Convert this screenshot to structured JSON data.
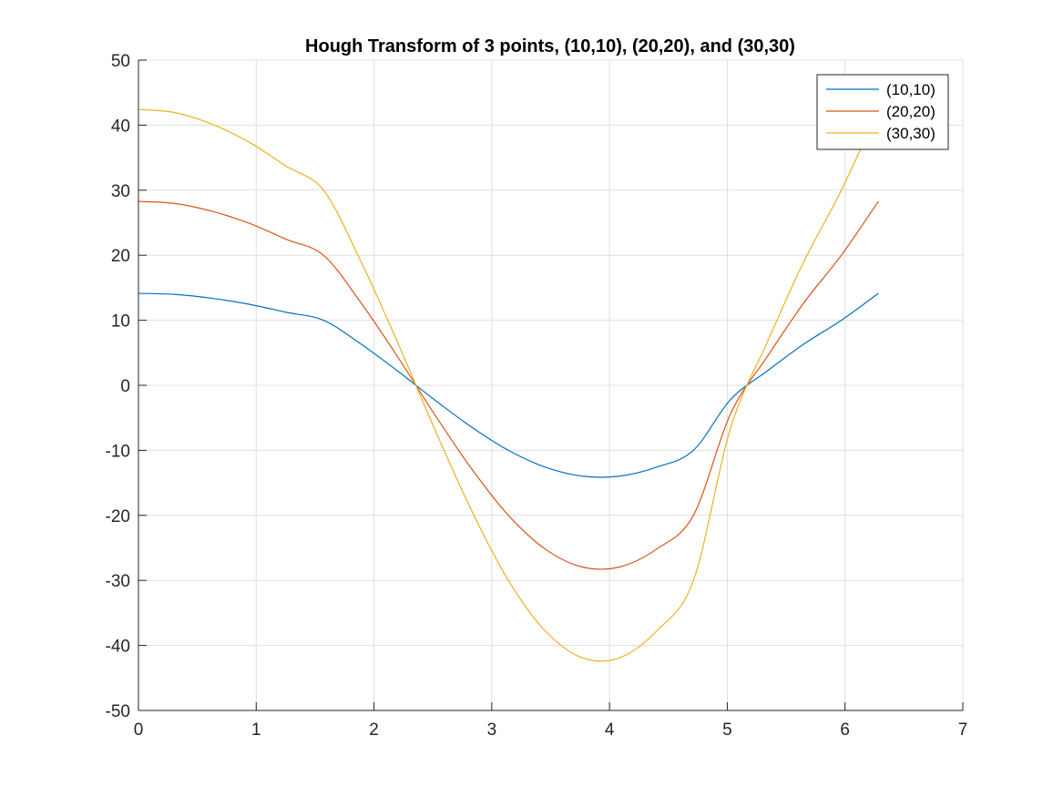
{
  "chart_data": {
    "type": "line",
    "title": "Hough Transform of 3 points, (10,10), (20,20), and (30,30)",
    "xlabel": "",
    "ylabel": "",
    "xlim": [
      0,
      7
    ],
    "ylim": [
      -50,
      50
    ],
    "x_ticks": [
      0,
      1,
      2,
      3,
      4,
      5,
      6,
      7
    ],
    "y_ticks": [
      50,
      40,
      30,
      20,
      10,
      0,
      -10,
      -20,
      -30,
      -40,
      -50
    ],
    "x_tick_labels": [
      "0",
      "1",
      "2",
      "3",
      "4",
      "5",
      "6",
      "7"
    ],
    "y_tick_labels": [
      "50",
      "40",
      "30",
      "20",
      "10",
      "0",
      "-10",
      "-20",
      "-30",
      "-40",
      "-50"
    ],
    "grid": true,
    "legend_position": "top-right",
    "x": [
      0,
      0.3142,
      0.6283,
      0.9425,
      1.2566,
      1.5708,
      1.885,
      2.1991,
      2.5133,
      2.8274,
      3.1416,
      3.4558,
      3.7699,
      4.0841,
      4.3982,
      4.7124,
      5.0265,
      5.3407,
      5.6549,
      5.969,
      6.2832
    ],
    "series": [
      {
        "name": "(10,10)",
        "color": "#0072BD",
        "values": [
          14.14,
          13.97,
          13.37,
          12.45,
          11.22,
          10.0,
          6.4,
          2.22,
          -2.22,
          -6.4,
          -10.0,
          -12.6,
          -13.97,
          -13.97,
          -12.6,
          -10.0,
          -2.22,
          2.22,
          6.4,
          10.0,
          14.14
        ]
      },
      {
        "name": "(20,20)",
        "color": "#D95319",
        "values": [
          28.28,
          27.94,
          26.74,
          24.9,
          22.44,
          20.0,
          12.8,
          4.44,
          -4.44,
          -12.8,
          -20.0,
          -25.2,
          -27.94,
          -27.94,
          -25.2,
          -20.0,
          -4.44,
          4.44,
          12.8,
          20.0,
          28.28
        ]
      },
      {
        "name": "(30,30)",
        "color": "#EDB120",
        "values": [
          42.43,
          41.91,
          40.11,
          37.35,
          33.66,
          30.0,
          19.2,
          6.66,
          -6.66,
          -19.2,
          -30.0,
          -37.8,
          -41.91,
          -41.91,
          -37.8,
          -30.0,
          -6.66,
          6.66,
          19.2,
          30.0,
          42.43
        ]
      }
    ]
  }
}
